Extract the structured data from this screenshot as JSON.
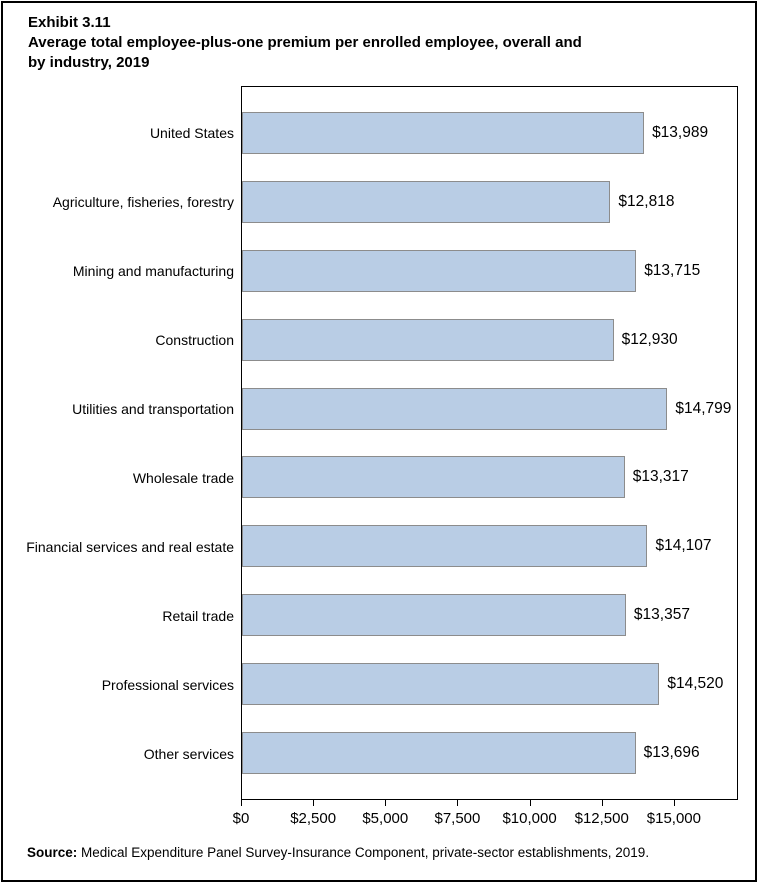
{
  "page": {
    "title_lines": [
      "Exhibit 3.11",
      "Average total employee-plus-one premium per enrolled employee, overall and",
      "by industry, 2019"
    ]
  },
  "source": {
    "label": "Source:",
    "text": " Medical Expenditure Panel Survey-Insurance Component, private-sector establishments, 2019."
  },
  "chart_data": {
    "type": "bar",
    "orientation": "horizontal",
    "title": "Average total employee-plus-one premium per enrolled employee, overall and by industry, 2019",
    "categories": [
      "United States",
      "Agriculture, fisheries, forestry",
      "Mining and manufacturing",
      "Construction",
      "Utilities and transportation",
      "Wholesale trade",
      "Financial services and real estate",
      "Retail trade",
      "Professional services",
      "Other services"
    ],
    "values": [
      13989,
      12818,
      13715,
      12930,
      14799,
      13317,
      14107,
      13357,
      14520,
      13696
    ],
    "value_labels": [
      "$13,989",
      "$12,818",
      "$13,715",
      "$12,930",
      "$14,799",
      "$13,317",
      "$14,107",
      "$13,357",
      "$14,520",
      "$13,696"
    ],
    "xlabel": "",
    "ylabel": "",
    "xlim": [
      0,
      17222
    ],
    "x_ticks": {
      "values": [
        0,
        2500,
        5000,
        7500,
        10000,
        12500,
        15000
      ],
      "labels": [
        "$0",
        "$2,500",
        "$5,000",
        "$7,500",
        "$10,000",
        "$12,500",
        "$15,000"
      ]
    },
    "grid": false,
    "legend": "none",
    "colors": {
      "bar_fill": "#B9CDE5",
      "bar_border": "#8C8C8C",
      "plot_border": "#000000",
      "text": "#000000"
    }
  }
}
